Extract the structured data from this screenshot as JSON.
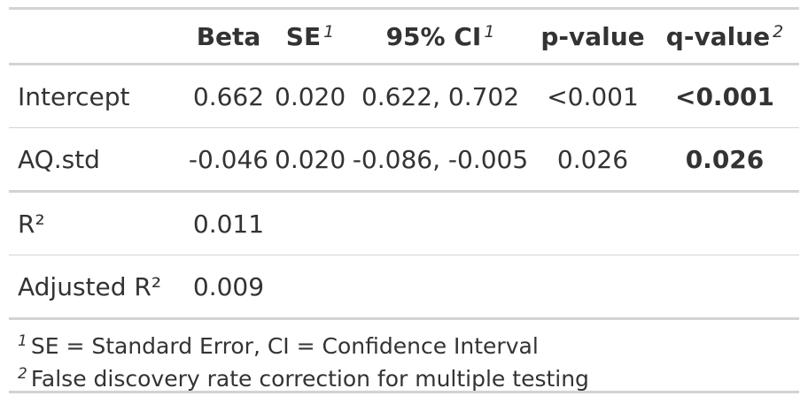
{
  "table": {
    "headers": {
      "label": "",
      "beta": "Beta",
      "se": "SE",
      "se_mark": "1",
      "ci": "95% CI",
      "ci_mark": "1",
      "p": "p-value",
      "q": "q-value",
      "q_mark": "2"
    },
    "rows": [
      {
        "label": "Intercept",
        "beta": "0.662",
        "se": "0.020",
        "ci": "0.622, 0.702",
        "p": "<0.001",
        "q": "<0.001"
      },
      {
        "label": "AQ.std",
        "beta": "-0.046",
        "se": "0.020",
        "ci": "-0.086, -0.005",
        "p": "0.026",
        "q": "0.026"
      },
      {
        "label": "R²",
        "beta": "0.011",
        "se": "",
        "ci": "",
        "p": "",
        "q": ""
      },
      {
        "label": "Adjusted R²",
        "beta": "0.009",
        "se": "",
        "ci": "",
        "p": "",
        "q": ""
      }
    ]
  },
  "footnotes": [
    {
      "mark": "1",
      "text": "SE = Standard Error, CI = Confidence Interval"
    },
    {
      "mark": "2",
      "text": "False discovery rate correction for multiple testing"
    }
  ]
}
